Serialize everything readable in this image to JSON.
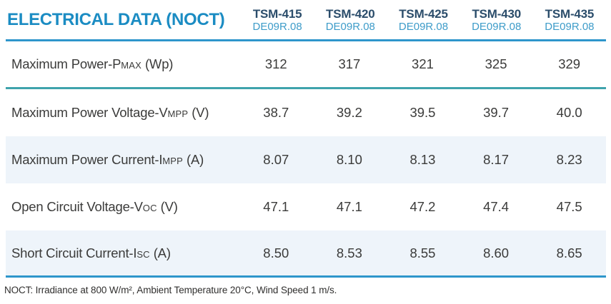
{
  "header": {
    "title": "ELECTRICAL DATA (NOCT)",
    "columns": [
      {
        "model": "TSM-415",
        "variant": "DE09R.08"
      },
      {
        "model": "TSM-420",
        "variant": "DE09R.08"
      },
      {
        "model": "TSM-425",
        "variant": "DE09R.08"
      },
      {
        "model": "TSM-430",
        "variant": "DE09R.08"
      },
      {
        "model": "TSM-435",
        "variant": "DE09R.08"
      }
    ]
  },
  "rows": [
    {
      "label": {
        "main": "Maximum Power-P",
        "sub": "MAX",
        "unit": " (Wp)"
      },
      "values": [
        "312",
        "317",
        "321",
        "325",
        "329"
      ]
    },
    {
      "label": {
        "main": "Maximum Power Voltage-V",
        "sub": "MPP",
        "unit": " (V)"
      },
      "values": [
        "38.7",
        "39.2",
        "39.5",
        "39.7",
        "40.0"
      ]
    },
    {
      "label": {
        "main": "Maximum Power Current-I",
        "sub": "MPP",
        "unit": " (A)"
      },
      "values": [
        "8.07",
        "8.10",
        "8.13",
        "8.17",
        "8.23"
      ]
    },
    {
      "label": {
        "main": "Open Circuit Voltage-V",
        "sub": "OC",
        "unit": " (V)"
      },
      "values": [
        "47.1",
        "47.1",
        "47.2",
        "47.4",
        "47.5"
      ]
    },
    {
      "label": {
        "main": "Short Circuit Current-I",
        "sub": "SC",
        "unit": " (A)"
      },
      "values": [
        "8.50",
        "8.53",
        "8.55",
        "8.60",
        "8.65"
      ]
    }
  ],
  "footer": {
    "note": "NOCT: Irradiance at 800 W/m², Ambient Temperature 20°C, Wind Speed 1 m/s."
  },
  "colors": {
    "title_blue": "#1B8CC3",
    "header_line_blue": "#2E96CB",
    "teal_divider": "#3FA3AC",
    "model_navy": "#2B4D6B",
    "variant_blue": "#3E9CC9",
    "row_shade": "#EEF4FA",
    "body_text": "#3B3B3A"
  }
}
